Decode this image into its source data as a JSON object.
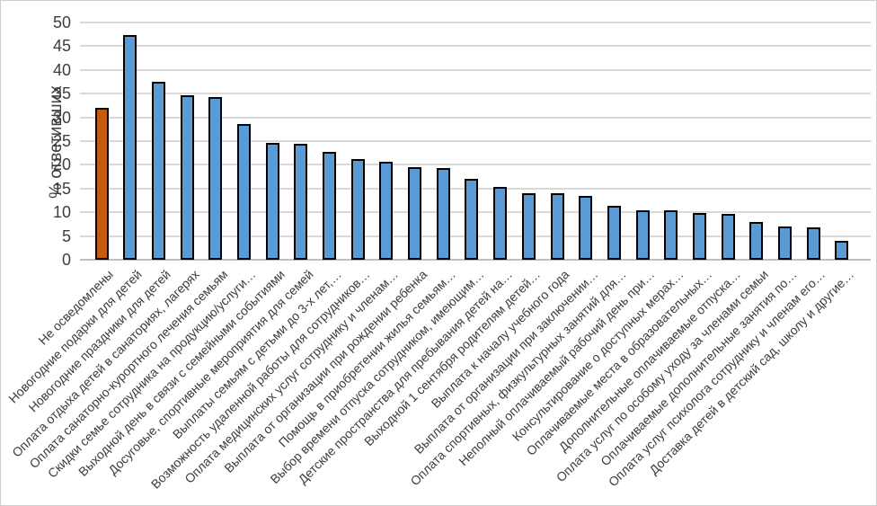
{
  "chart_data": {
    "type": "bar",
    "title": "",
    "xlabel": "",
    "ylabel": "% ответивших",
    "ylim": [
      0,
      50
    ],
    "ytick_step": 5,
    "grid": true,
    "legend": false,
    "highlight_index": 0,
    "colors": {
      "highlight_bar": "#C55A11",
      "bar": "#5B9BD5",
      "bar_border": "#000000",
      "gridline": "#D9D9D9",
      "axis_line": "#BFBFBF",
      "text": "#3D3D3D"
    },
    "categories": [
      "Не осведомлены",
      "Новогодние подарки для детей",
      "Новогодние праздники для детей",
      "Оплата отдыха детей в санаториях, лагерях",
      "Оплата санаторно-курортного лечения семьям",
      "Скидки семье сотрудника на продукцию/услуги…",
      "Выходной день в связи с семейными событиями",
      "Досуговые, спортивные мероприятия для семей",
      "Выплаты семьям с детьми до 3-х лет,…",
      "Возможность удаленной работы для сотрудников…",
      "Оплата медицинских услуг сотруднику и членам…",
      "Выплата от организации при рождении ребенка",
      "Помощь в приобретении жилья семьям…",
      "Выбор времени отпуска сотрудником, имеющим…",
      "Детские пространства для пребывания детей на…",
      "Выходной 1 сентября родителям детей…",
      "Выплата к началу учебного года",
      "Выплата от организации при заключении…",
      "Оплата спортивных, физкультурных занятий для…",
      "Неполный оплачиваемый рабочий день при…",
      "Консультирование о доступных мерах…",
      "Оплачиваемые места в образовательных…",
      "Дополнительные оплачиваемые отпуска…",
      "Оплата услуг по особому уходу за членами семьи",
      "Оплачиваемые дополнительные занятия по…",
      "Оплата услуг психолога сотруднику и членам его…",
      "Доставка детей в детский сад, школу и другие…"
    ],
    "values": [
      32.1,
      47.3,
      37.5,
      34.7,
      34.3,
      28.6,
      24.6,
      24.5,
      22.8,
      21.2,
      20.7,
      19.6,
      19.3,
      17.1,
      15.4,
      14.1,
      14.1,
      13.5,
      11.4,
      10.4,
      10.4,
      9.8,
      9.7,
      8.0,
      7.1,
      6.8,
      4.0
    ]
  }
}
